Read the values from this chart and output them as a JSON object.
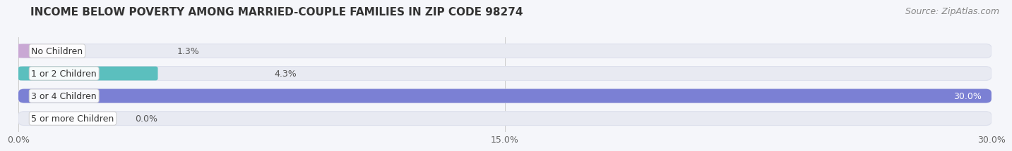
{
  "title": "INCOME BELOW POVERTY AMONG MARRIED-COUPLE FAMILIES IN ZIP CODE 98274",
  "source": "Source: ZipAtlas.com",
  "categories": [
    "No Children",
    "1 or 2 Children",
    "3 or 4 Children",
    "5 or more Children"
  ],
  "values": [
    1.3,
    4.3,
    30.0,
    0.0
  ],
  "bar_colors": [
    "#c9a8d4",
    "#5bbfbe",
    "#7b80d4",
    "#f4a0b8"
  ],
  "bar_bg_color": "#e8eaf2",
  "xmax": 30.0,
  "xticks": [
    0.0,
    15.0,
    30.0
  ],
  "xtick_labels": [
    "0.0%",
    "15.0%",
    "30.0%"
  ],
  "value_labels": [
    "1.3%",
    "4.3%",
    "30.0%",
    "0.0%"
  ],
  "title_fontsize": 11,
  "source_fontsize": 9,
  "tick_fontsize": 9,
  "bar_label_fontsize": 9,
  "cat_label_fontsize": 9,
  "background_color": "#f5f6fa",
  "bar_bg_outline": "#dde0ec"
}
